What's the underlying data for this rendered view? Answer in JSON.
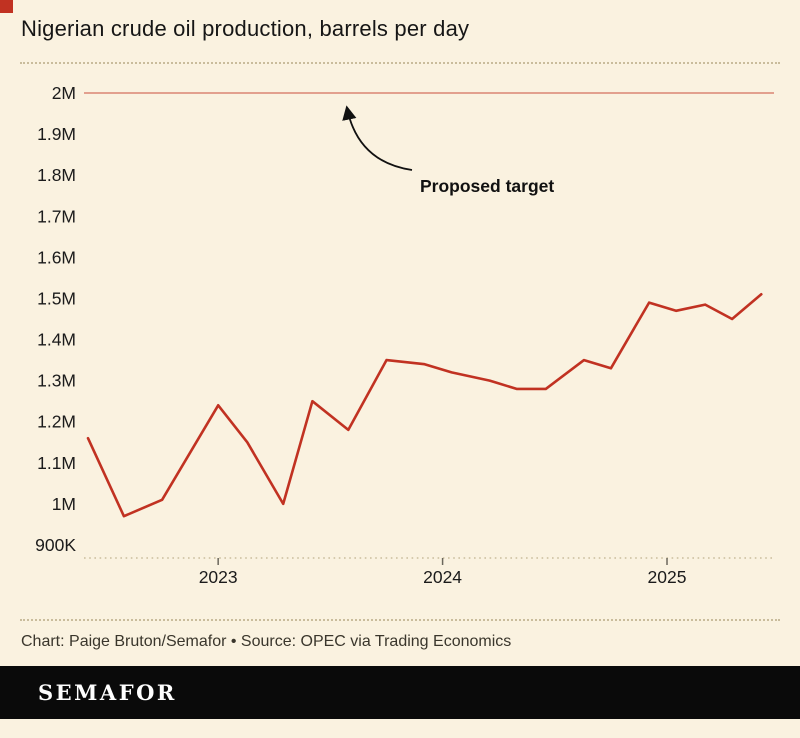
{
  "header": {
    "title": "Nigerian crude oil production, barrels per day"
  },
  "footer": {
    "credit": "Chart: Paige Bruton/Semafor • Source: OPEC via Trading Economics",
    "logo": "SEMAFOR"
  },
  "colors": {
    "background": "#faf2e0",
    "line": "#c13222",
    "target_line": "#e2a08e",
    "accent": "#c13222",
    "separator": "#c9bc9c",
    "axis_tick": "#6b675c",
    "text": "#1b1b1b"
  },
  "chart_data": {
    "type": "line",
    "title": "Nigerian crude oil production, barrels per day",
    "xlabel": "",
    "ylabel": "",
    "unit": "million barrels per day",
    "x_domain": [
      2022.42,
      2025.45
    ],
    "y_domain": [
      0.9,
      2.0
    ],
    "grid": "off",
    "y_ticks": [
      {
        "label": "2M",
        "value": 2.0
      },
      {
        "label": "1.9M",
        "value": 1.9
      },
      {
        "label": "1.8M",
        "value": 1.8
      },
      {
        "label": "1.7M",
        "value": 1.7
      },
      {
        "label": "1.6M",
        "value": 1.6
      },
      {
        "label": "1.5M",
        "value": 1.5
      },
      {
        "label": "1.4M",
        "value": 1.4
      },
      {
        "label": "1.3M",
        "value": 1.3
      },
      {
        "label": "1.2M",
        "value": 1.2
      },
      {
        "label": "1.1M",
        "value": 1.1
      },
      {
        "label": "1M",
        "value": 1.0
      },
      {
        "label": "900K",
        "value": 0.9
      }
    ],
    "x_ticks": [
      {
        "label": "2023",
        "value": 2023.0
      },
      {
        "label": "2024",
        "value": 2024.0
      },
      {
        "label": "2025",
        "value": 2025.0
      }
    ],
    "reference_line": {
      "label": "Proposed target",
      "value": 2.0
    },
    "series": [
      {
        "name": "Nigerian crude oil production",
        "points": [
          [
            2022.42,
            1.16
          ],
          [
            2022.58,
            0.97
          ],
          [
            2022.75,
            1.01
          ],
          [
            2023.0,
            1.24
          ],
          [
            2023.13,
            1.15
          ],
          [
            2023.29,
            1.0
          ],
          [
            2023.42,
            1.25
          ],
          [
            2023.58,
            1.18
          ],
          [
            2023.75,
            1.35
          ],
          [
            2023.92,
            1.34
          ],
          [
            2024.04,
            1.32
          ],
          [
            2024.21,
            1.3
          ],
          [
            2024.33,
            1.28
          ],
          [
            2024.46,
            1.28
          ],
          [
            2024.63,
            1.35
          ],
          [
            2024.75,
            1.33
          ],
          [
            2024.92,
            1.49
          ],
          [
            2025.04,
            1.47
          ],
          [
            2025.17,
            1.485
          ],
          [
            2025.29,
            1.45
          ],
          [
            2025.42,
            1.51
          ]
        ]
      }
    ]
  }
}
